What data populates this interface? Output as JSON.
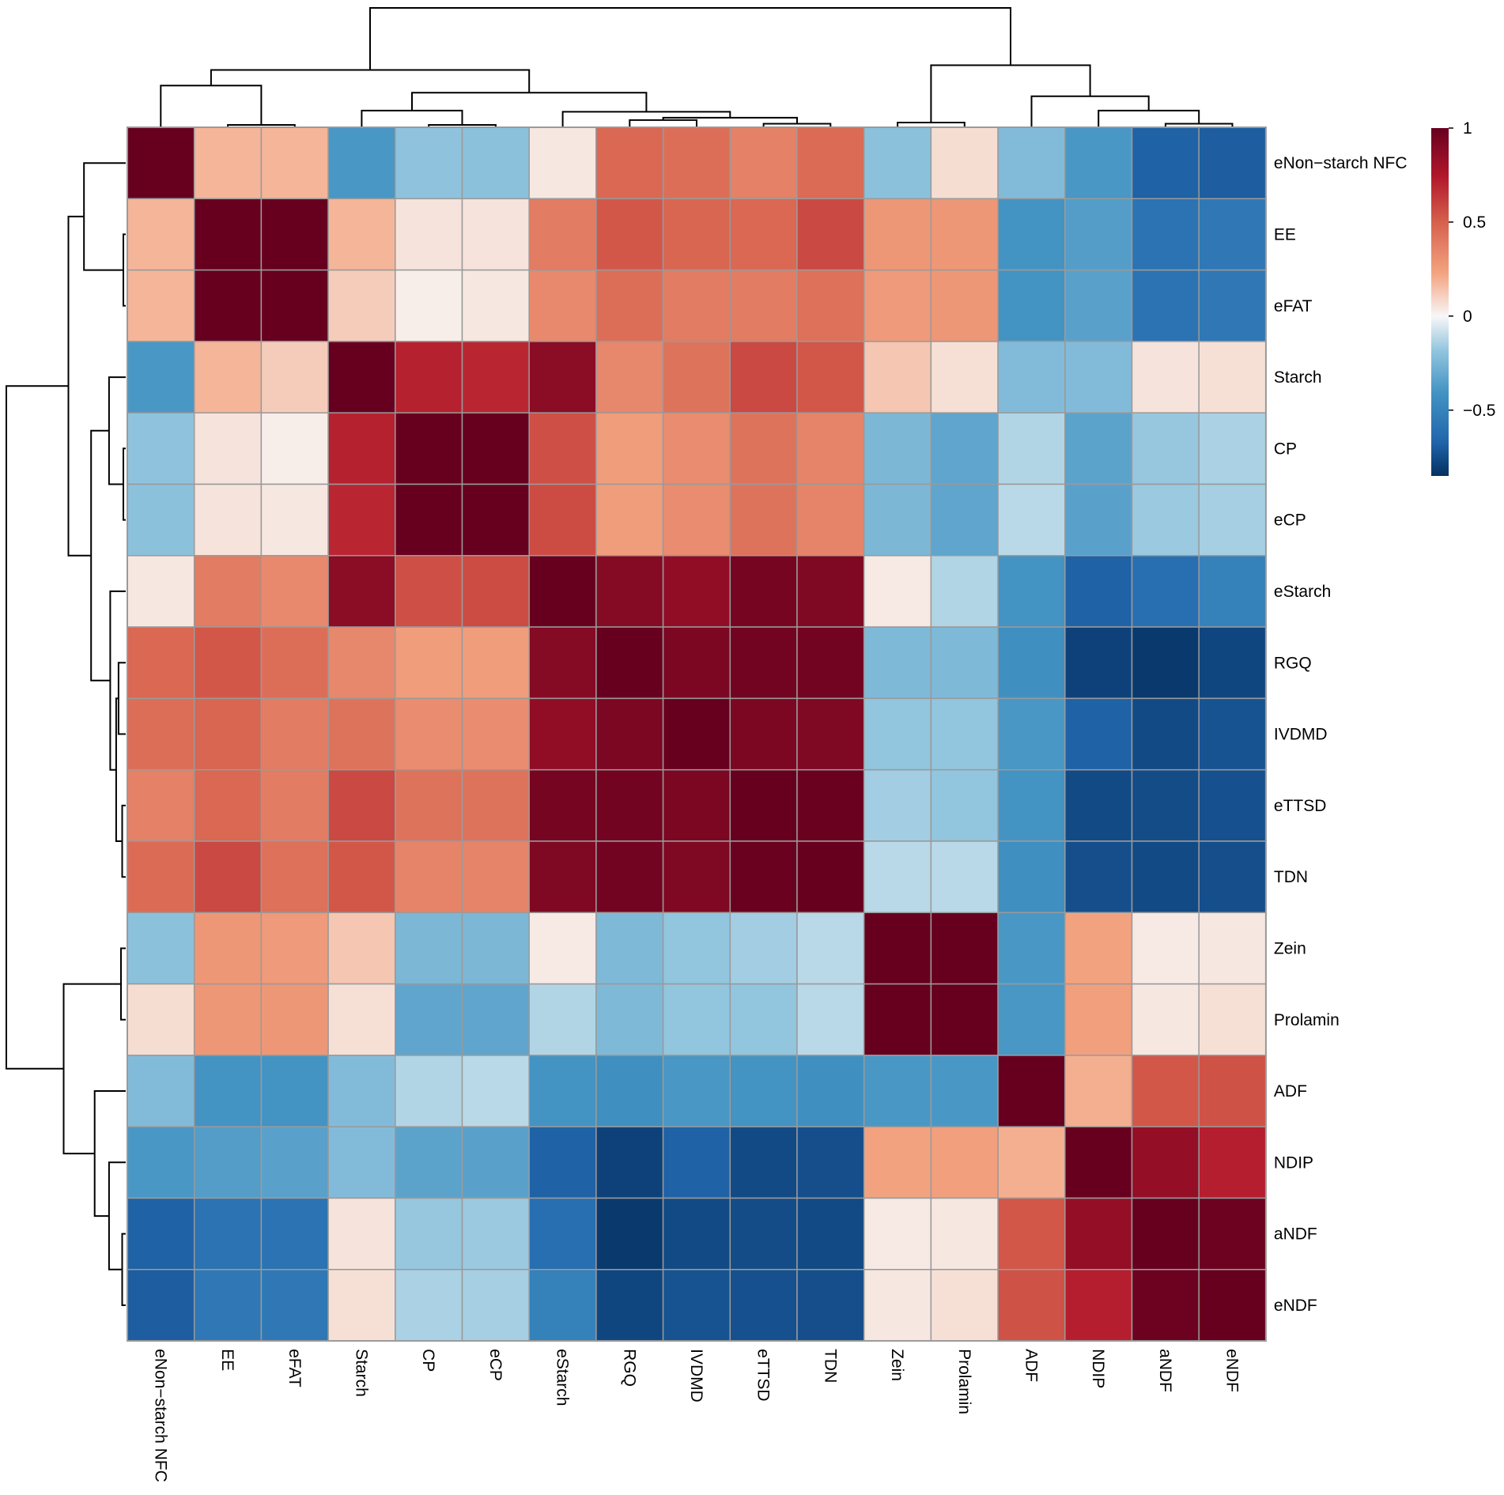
{
  "chart_data": {
    "type": "heatmap",
    "title": "",
    "labels": [
      "eNon−starch NFC",
      "EE",
      "eFAT",
      "Starch",
      "CP",
      "eCP",
      "eStarch",
      "RGQ",
      "IVDMD",
      "eTTSD",
      "TDN",
      "Zein",
      "Prolamin",
      "ADF",
      "NDIP",
      "aNDF",
      "eNDF"
    ],
    "matrix": [
      [
        1.0,
        0.2,
        0.2,
        -0.48,
        -0.26,
        -0.27,
        0.05,
        0.47,
        0.45,
        0.38,
        0.46,
        -0.27,
        0.08,
        -0.3,
        -0.48,
        -0.77,
        -0.79
      ],
      [
        0.2,
        1.0,
        1.0,
        0.2,
        0.06,
        0.06,
        0.4,
        0.53,
        0.48,
        0.47,
        0.58,
        0.3,
        0.3,
        -0.5,
        -0.45,
        -0.68,
        -0.65
      ],
      [
        0.2,
        1.0,
        1.0,
        0.13,
        0.03,
        0.05,
        0.35,
        0.45,
        0.4,
        0.4,
        0.44,
        0.29,
        0.3,
        -0.5,
        -0.43,
        -0.68,
        -0.65
      ],
      [
        -0.48,
        0.2,
        0.13,
        1.0,
        0.72,
        0.7,
        0.88,
        0.36,
        0.43,
        0.58,
        0.53,
        0.15,
        0.07,
        -0.3,
        -0.3,
        0.06,
        0.07
      ],
      [
        -0.26,
        0.06,
        0.03,
        0.72,
        1.0,
        1.0,
        0.56,
        0.28,
        0.34,
        0.43,
        0.37,
        -0.32,
        -0.41,
        -0.17,
        -0.42,
        -0.24,
        -0.19
      ],
      [
        -0.27,
        0.06,
        0.05,
        0.7,
        1.0,
        1.0,
        0.57,
        0.28,
        0.34,
        0.43,
        0.37,
        -0.32,
        -0.41,
        -0.15,
        -0.43,
        -0.23,
        -0.2
      ],
      [
        0.05,
        0.4,
        0.35,
        0.88,
        0.56,
        0.57,
        1.0,
        0.9,
        0.86,
        0.95,
        0.92,
        0.04,
        -0.17,
        -0.5,
        -0.77,
        -0.7,
        -0.6
      ],
      [
        0.47,
        0.53,
        0.45,
        0.36,
        0.28,
        0.28,
        0.9,
        1.0,
        0.93,
        0.96,
        0.96,
        -0.31,
        -0.31,
        -0.52,
        -0.92,
        -0.96,
        -0.9
      ],
      [
        0.45,
        0.48,
        0.4,
        0.43,
        0.34,
        0.34,
        0.86,
        0.93,
        1.0,
        0.93,
        0.92,
        -0.25,
        -0.25,
        -0.48,
        -0.77,
        -0.88,
        -0.84
      ],
      [
        0.38,
        0.47,
        0.4,
        0.58,
        0.43,
        0.43,
        0.95,
        0.96,
        0.93,
        1.0,
        0.99,
        -0.21,
        -0.25,
        -0.5,
        -0.88,
        -0.87,
        -0.85
      ],
      [
        0.46,
        0.58,
        0.44,
        0.53,
        0.37,
        0.37,
        0.92,
        0.96,
        0.92,
        0.99,
        1.0,
        -0.15,
        -0.15,
        -0.52,
        -0.86,
        -0.88,
        -0.86
      ],
      [
        -0.27,
        0.3,
        0.29,
        0.15,
        -0.32,
        -0.32,
        0.04,
        -0.31,
        -0.25,
        -0.21,
        -0.15,
        1.0,
        1.0,
        -0.48,
        0.26,
        0.04,
        0.05
      ],
      [
        0.08,
        0.3,
        0.3,
        0.07,
        -0.41,
        -0.41,
        -0.17,
        -0.31,
        -0.25,
        -0.25,
        -0.15,
        1.0,
        1.0,
        -0.48,
        0.27,
        0.05,
        0.07
      ],
      [
        -0.3,
        -0.5,
        -0.5,
        -0.3,
        -0.17,
        -0.15,
        -0.5,
        -0.52,
        -0.48,
        -0.5,
        -0.52,
        -0.48,
        -0.48,
        1.0,
        0.22,
        0.53,
        0.55
      ],
      [
        -0.48,
        -0.45,
        -0.43,
        -0.3,
        -0.42,
        -0.43,
        -0.77,
        -0.92,
        -0.77,
        -0.88,
        -0.86,
        0.26,
        0.27,
        0.22,
        1.0,
        0.85,
        0.73
      ],
      [
        -0.77,
        -0.68,
        -0.68,
        0.06,
        -0.24,
        -0.23,
        -0.7,
        -0.96,
        -0.88,
        -0.87,
        -0.88,
        0.04,
        0.05,
        0.53,
        0.85,
        1.0,
        0.98
      ],
      [
        -0.79,
        -0.65,
        -0.65,
        0.07,
        -0.19,
        -0.2,
        -0.6,
        -0.9,
        -0.84,
        -0.85,
        -0.86,
        0.05,
        0.07,
        0.55,
        0.73,
        0.98,
        1.0
      ]
    ],
    "color_scale": {
      "min": -0.85,
      "max": 1.0,
      "low_color": "#053061",
      "mid_color": "#F7F7F7",
      "high_color": "#67001F",
      "ticks": [
        1,
        0.5,
        0,
        -0.5
      ],
      "tick_labels": [
        "1",
        "0.5",
        "0",
        "−0.5"
      ]
    },
    "dendrogram": "hierarchical clustering on rows and columns",
    "legend_position": "top-right",
    "grid": true
  }
}
